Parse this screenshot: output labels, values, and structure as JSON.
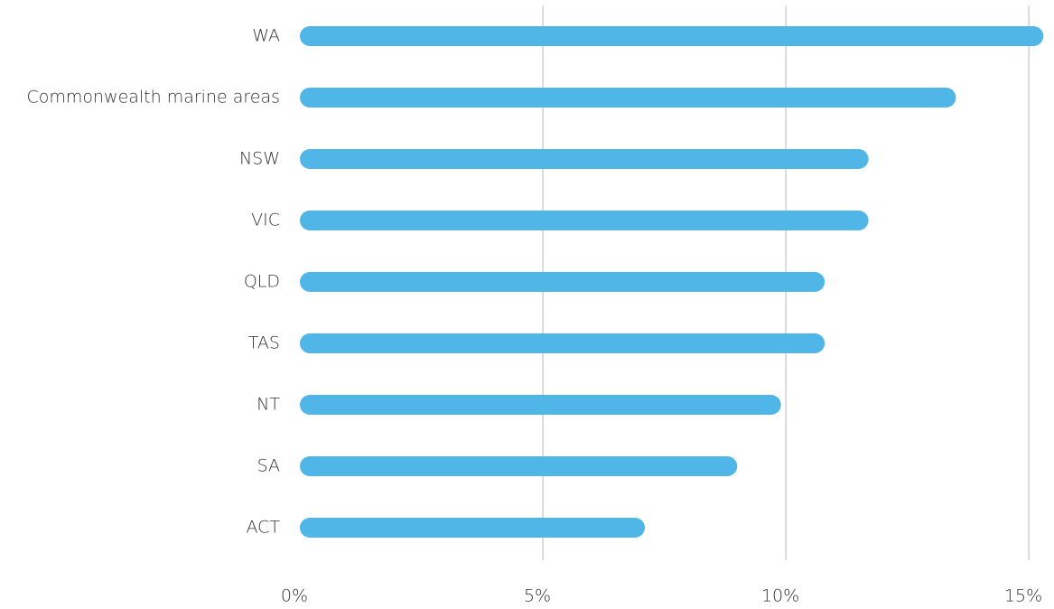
{
  "chart_data": {
    "type": "bar",
    "orientation": "horizontal",
    "categories": [
      "WA",
      "Commonwealth marine areas",
      "NSW",
      "VIC",
      "QLD",
      "TAS",
      "NT",
      "SA",
      "ACT"
    ],
    "values": [
      15.3,
      13.5,
      11.7,
      11.7,
      10.8,
      10.8,
      9.9,
      9.0,
      7.1
    ],
    "color": "#4fb6e7",
    "xlim": [
      0,
      15.5
    ],
    "xticks": [
      {
        "value": 0,
        "label": "0%"
      },
      {
        "value": 5,
        "label": "5%"
      },
      {
        "value": 10,
        "label": "10%"
      },
      {
        "value": 15,
        "label": "15%"
      }
    ],
    "grid": true
  }
}
